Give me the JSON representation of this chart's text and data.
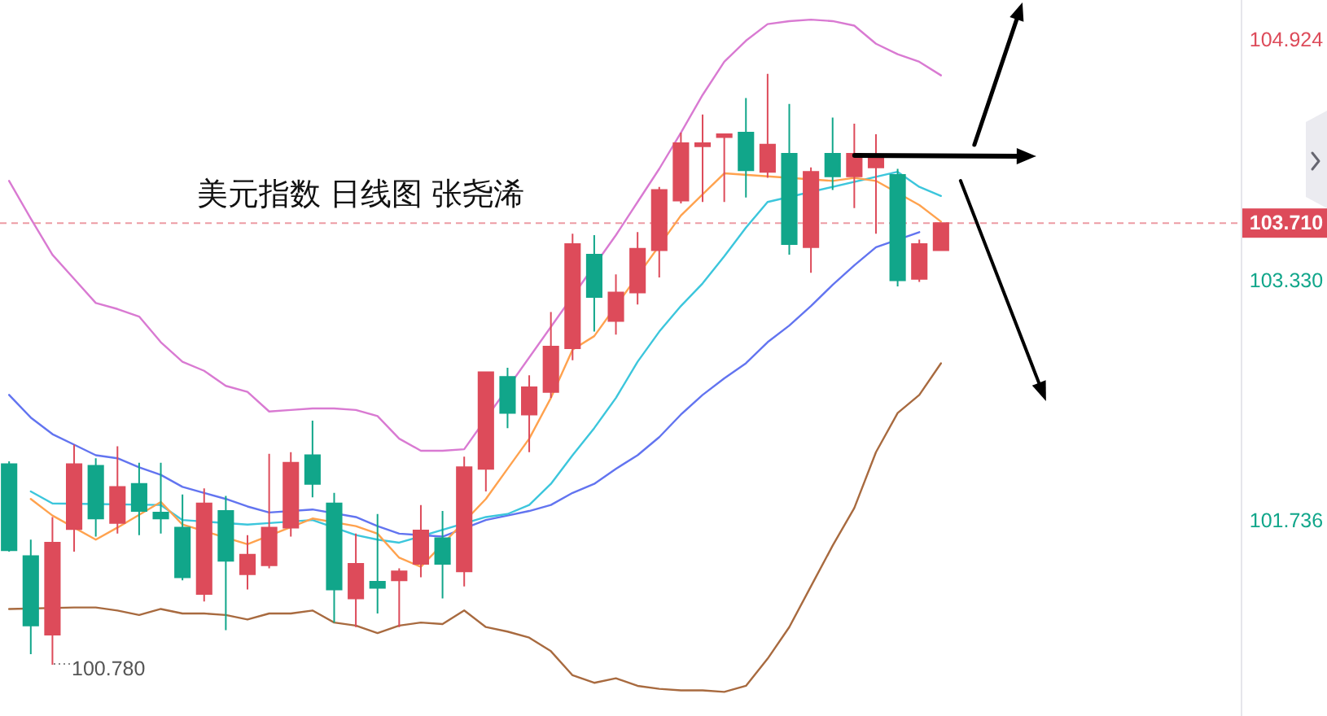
{
  "chart_data": {
    "type": "candlestick",
    "title": "美元指数 日线图 张尧浠",
    "categories": [
      null,
      null,
      null,
      null,
      null,
      null,
      null,
      null,
      null,
      null,
      null,
      null,
      null,
      null,
      null,
      null,
      null,
      null,
      null,
      null,
      null,
      null,
      null,
      null,
      null,
      null,
      null,
      null,
      null,
      null,
      null,
      null,
      null,
      null,
      null,
      null,
      null,
      null,
      null,
      null,
      null,
      null,
      null,
      null
    ],
    "ohlc": [
      [
        102.11,
        102.13,
        101.53,
        101.54
      ],
      [
        101.5,
        101.61,
        100.85,
        101.04
      ],
      [
        100.98,
        101.76,
        100.78,
        101.59
      ],
      [
        101.68,
        102.24,
        101.53,
        102.11
      ],
      [
        102.1,
        102.15,
        101.63,
        101.75
      ],
      [
        101.72,
        102.23,
        101.65,
        101.96
      ],
      [
        101.98,
        102.12,
        101.64,
        101.8
      ],
      [
        101.79,
        102.12,
        101.65,
        101.75
      ],
      [
        101.69,
        101.91,
        101.34,
        101.36
      ],
      [
        101.25,
        101.95,
        101.2,
        101.85
      ],
      [
        101.8,
        101.9,
        101.01,
        101.47
      ],
      [
        101.38,
        101.64,
        101.28,
        101.51
      ],
      [
        101.44,
        102.18,
        101.42,
        101.69
      ],
      [
        101.69,
        102.19,
        101.63,
        102.12
      ],
      [
        102.17,
        102.4,
        101.89,
        101.98
      ],
      [
        101.85,
        101.92,
        101.06,
        101.28
      ],
      [
        101.22,
        101.65,
        101.03,
        101.45
      ],
      [
        101.33,
        101.78,
        101.12,
        101.29
      ],
      [
        101.34,
        101.42,
        101.03,
        101.4
      ],
      [
        101.45,
        101.84,
        101.36,
        101.67
      ],
      [
        101.62,
        101.8,
        101.22,
        101.45
      ],
      [
        101.4,
        102.16,
        101.3,
        102.09
      ],
      [
        102.08,
        102.72,
        101.93,
        102.72
      ],
      [
        102.69,
        102.75,
        102.35,
        102.45
      ],
      [
        102.44,
        102.7,
        102.19,
        102.62
      ],
      [
        102.59,
        103.12,
        102.55,
        102.89
      ],
      [
        102.88,
        103.64,
        102.8,
        103.57
      ],
      [
        103.5,
        103.63,
        102.99,
        103.22
      ],
      [
        103.06,
        103.37,
        102.97,
        103.25
      ],
      [
        103.25,
        103.65,
        103.17,
        103.54
      ],
      [
        103.53,
        103.95,
        103.35,
        103.93
      ],
      [
        103.86,
        104.31,
        103.84,
        104.24
      ],
      [
        104.22,
        104.43,
        103.85,
        104.24
      ],
      [
        104.28,
        104.3,
        103.85,
        104.3
      ],
      [
        104.31,
        104.54,
        103.88,
        104.06
      ],
      [
        104.05,
        104.7,
        104.01,
        104.23
      ],
      [
        104.17,
        104.5,
        103.5,
        103.57
      ],
      [
        103.55,
        104.08,
        103.38,
        104.05
      ],
      [
        104.17,
        104.41,
        103.93,
        104.02
      ],
      [
        104.02,
        104.37,
        103.81,
        104.17
      ],
      [
        104.08,
        104.3,
        103.64,
        104.14
      ],
      [
        104.03,
        104.07,
        103.29,
        103.33
      ],
      [
        103.34,
        103.6,
        103.32,
        103.57
      ],
      [
        103.53,
        103.71,
        103.53,
        103.71
      ]
    ],
    "colors": [
      "#11a68a",
      "#11a68a",
      "#dd4b5a",
      "#dd4b5a",
      "#11a68a",
      "#dd4b5a",
      "#11a68a",
      "#11a68a",
      "#11a68a",
      "#dd4b5a",
      "#11a68a",
      "#dd4b5a",
      "#dd4b5a",
      "#dd4b5a",
      "#11a68a",
      "#11a68a",
      "#dd4b5a",
      "#11a68a",
      "#dd4b5a",
      "#dd4b5a",
      "#11a68a",
      "#dd4b5a",
      "#dd4b5a",
      "#11a68a",
      "#dd4b5a",
      "#dd4b5a",
      "#dd4b5a",
      "#11a68a",
      "#dd4b5a",
      "#dd4b5a",
      "#dd4b5a",
      "#dd4b5a",
      "#dd4b5a",
      "#dd4b5a",
      "#11a68a",
      "#dd4b5a",
      "#11a68a",
      "#dd4b5a",
      "#11a68a",
      "#dd4b5a",
      "#dd4b5a",
      "#11a68a",
      "#dd4b5a",
      "#dd4b5a"
    ],
    "series": [
      {
        "type": "line",
        "color": "#d97ad2",
        "values": [
          103.99,
          103.74,
          103.5,
          103.34,
          103.18,
          103.14,
          103.09,
          102.92,
          102.79,
          102.73,
          102.63,
          102.59,
          102.46,
          102.47,
          102.48,
          102.48,
          102.47,
          102.43,
          102.28,
          102.2,
          102.2,
          102.21,
          null,
          null,
          null,
          null,
          null,
          null,
          103.63,
          103.85,
          104.07,
          104.31,
          104.56,
          104.78,
          104.92,
          105.03,
          105.05,
          105.06,
          105.05,
          105.02,
          104.9,
          104.83,
          104.78,
          104.69
        ]
      },
      {
        "type": "line",
        "color": "#a86a3f",
        "values": [
          101.15,
          null,
          null,
          101.16,
          101.16,
          101.14,
          101.11,
          101.15,
          101.12,
          101.12,
          101.11,
          101.08,
          101.12,
          101.12,
          101.14,
          101.06,
          101.04,
          100.99,
          101.04,
          101.06,
          101.05,
          101.14,
          101.03,
          101.0,
          100.96,
          100.87,
          100.71,
          100.66,
          100.69,
          100.64,
          100.62,
          100.61,
          100.61,
          100.6,
          100.64,
          100.82,
          101.03,
          101.3,
          101.57,
          101.82,
          102.19,
          102.45,
          102.57,
          102.78
        ]
      },
      {
        "type": "line",
        "color": "#6274f0",
        "values": [
          102.57,
          102.42,
          102.31,
          102.24,
          102.17,
          102.15,
          102.09,
          102.04,
          101.96,
          101.92,
          101.88,
          101.83,
          101.79,
          null,
          101.81,
          null,
          101.76,
          101.7,
          101.65,
          null,
          101.63,
          null,
          101.74,
          101.77,
          101.8,
          101.84,
          101.92,
          101.98,
          102.08,
          102.17,
          102.29,
          102.44,
          102.57,
          102.68,
          102.78,
          102.92,
          103.03,
          103.16,
          103.3,
          103.43,
          103.55,
          null,
          103.65,
          null
        ]
      },
      {
        "type": "line",
        "color": "#3cc6dc",
        "values": [
          null,
          101.93,
          101.85,
          null,
          null,
          null,
          null,
          101.84,
          101.74,
          null,
          null,
          101.71,
          101.72,
          null,
          101.74,
          null,
          101.64,
          101.61,
          101.59,
          null,
          null,
          null,
          101.76,
          101.78,
          101.84,
          101.98,
          102.17,
          102.35,
          102.55,
          102.79,
          102.99,
          103.16,
          103.31,
          103.49,
          103.68,
          103.85,
          null,
          null,
          null,
          null,
          null,
          104.05,
          103.95,
          103.89
        ]
      },
      {
        "type": "line",
        "color": "#ffa24e",
        "values": [
          null,
          101.88,
          101.77,
          null,
          101.61,
          101.69,
          null,
          101.86,
          101.71,
          null,
          null,
          101.58,
          null,
          null,
          101.75,
          null,
          101.7,
          101.65,
          101.49,
          101.43,
          null,
          null,
          101.88,
          102.08,
          102.28,
          102.55,
          102.87,
          102.96,
          null,
          null,
          null,
          103.76,
          103.9,
          104.04,
          null,
          null,
          null,
          null,
          103.99,
          104.01,
          103.99,
          null,
          103.83,
          103.72
        ]
      }
    ],
    "ylim": [
      100.44,
      105.19
    ],
    "yticks": [
      101.736,
      {
        "value": 103.33,
        "label": "103.330"
      },
      104.924
    ],
    "tick_labels": "y",
    "ref_lines": [
      {
        "axis": "y",
        "value": 103.71,
        "label": "103.710",
        "color": "#dd4b5a",
        "line_style": "dashed"
      }
    ],
    "annotations": [
      "100.780"
    ]
  }
}
